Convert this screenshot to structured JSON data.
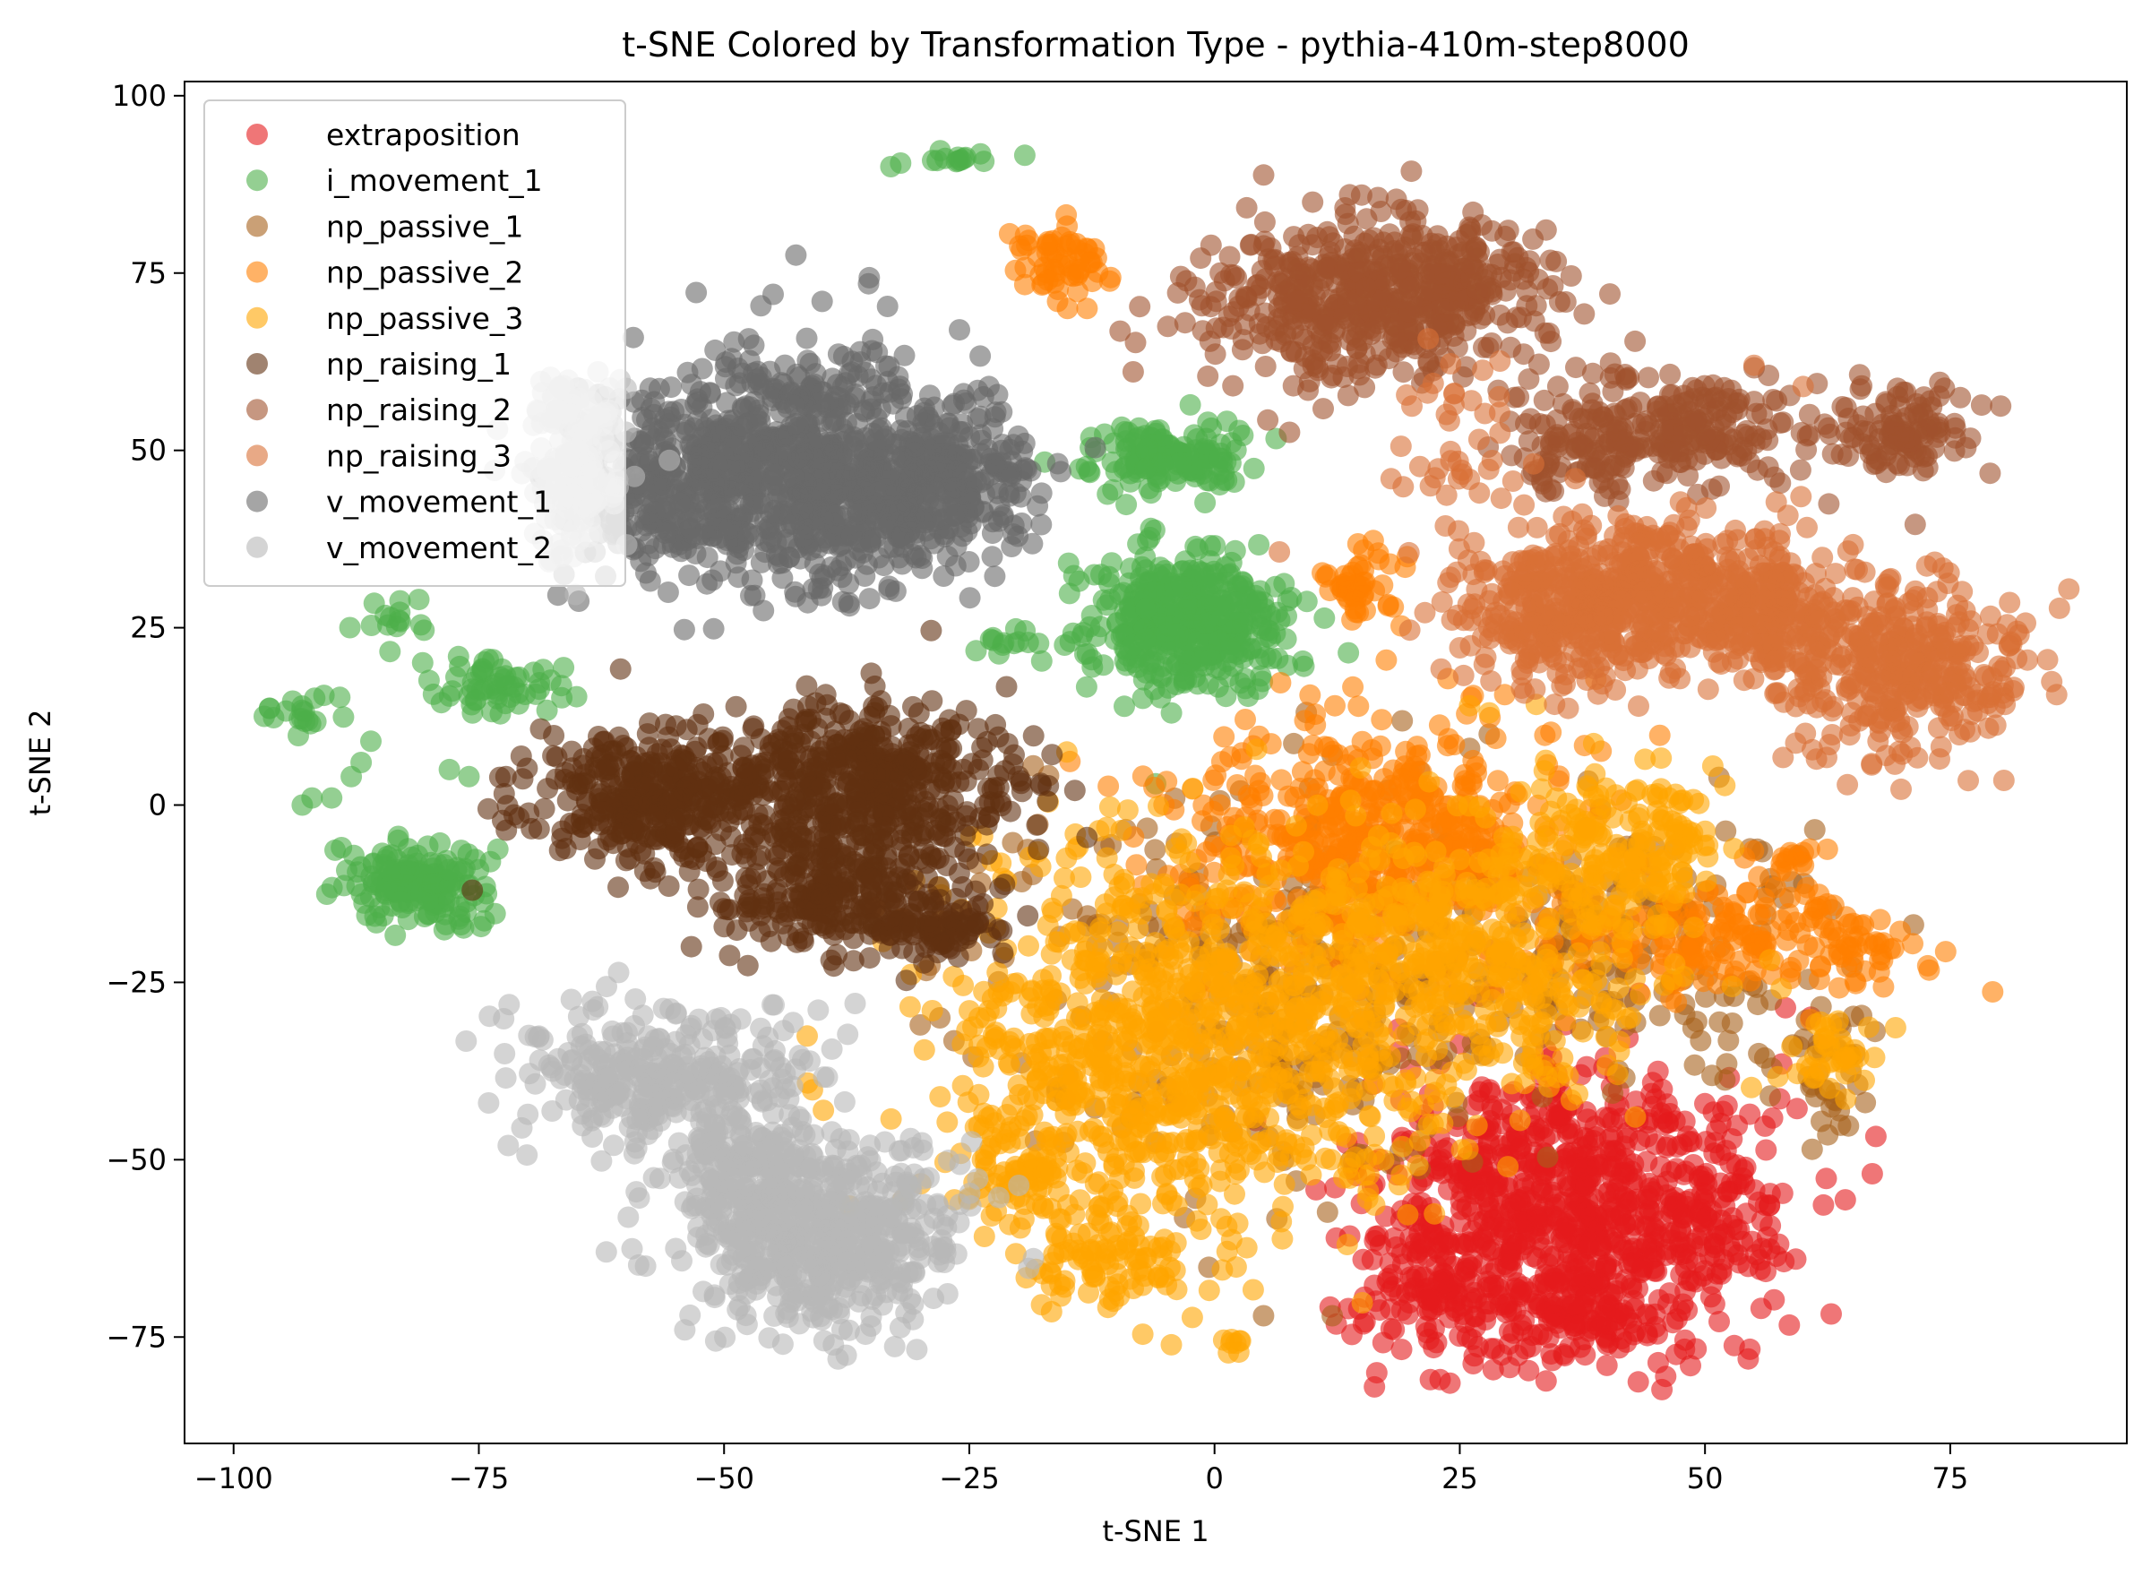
{
  "chart_data": {
    "type": "scatter",
    "title": "t-SNE Colored by Transformation Type - pythia-410m-step8000",
    "xlabel": "t-SNE 1",
    "ylabel": "t-SNE 2",
    "xlim": [
      -105,
      93
    ],
    "ylim": [
      -90,
      102
    ],
    "xticks": [
      -100,
      -75,
      -50,
      -25,
      0,
      25,
      50,
      75
    ],
    "yticks": [
      -75,
      -50,
      -25,
      0,
      25,
      50,
      75,
      100
    ],
    "xtick_labels": [
      "−100",
      "−75",
      "−50",
      "−25",
      "0",
      "25",
      "50",
      "75"
    ],
    "ytick_labels": [
      "−75",
      "−50",
      "−25",
      "0",
      "25",
      "50",
      "75",
      "100"
    ],
    "grid": false,
    "legend_position": "top-left",
    "marker_alpha": 0.6,
    "series": [
      {
        "name": "extraposition",
        "color": "#e41a1c",
        "clusters": [
          {
            "cx": 36,
            "cy": -55,
            "sx": 10,
            "sy": 9,
            "n": 700
          },
          {
            "cx": 35,
            "cy": -70,
            "sx": 8,
            "sy": 5,
            "n": 250
          },
          {
            "cx": 22,
            "cy": -65,
            "sx": 4,
            "sy": 5,
            "n": 60
          },
          {
            "cx": 50,
            "cy": -58,
            "sx": 4,
            "sy": 6,
            "n": 60
          }
        ],
        "points": [
          [
            23,
            -81
          ],
          [
            22,
            -81
          ],
          [
            24,
            -81.5
          ],
          [
            40,
            -79
          ]
        ]
      },
      {
        "name": "i_movement_1",
        "color": "#4daf4a",
        "clusters": [
          {
            "cx": -3,
            "cy": 26,
            "sx": 5,
            "sy": 5,
            "n": 450
          },
          {
            "cx": -5,
            "cy": 49,
            "sx": 4,
            "sy": 2.5,
            "n": 160
          },
          {
            "cx": -81,
            "cy": -11,
            "sx": 3.2,
            "sy": 2.6,
            "n": 180
          },
          {
            "cx": -73,
            "cy": 17,
            "sx": 3.2,
            "sy": 2,
            "n": 60
          },
          {
            "cx": -93,
            "cy": 13,
            "sx": 2,
            "sy": 1.5,
            "n": 20
          },
          {
            "cx": -84,
            "cy": 27,
            "sx": 2,
            "sy": 2,
            "n": 15
          },
          {
            "cx": -21,
            "cy": 23,
            "sx": 1.5,
            "sy": 1,
            "n": 12
          },
          {
            "cx": -26,
            "cy": 91,
            "sx": 2,
            "sy": 0.6,
            "n": 14
          }
        ],
        "points": [
          [
            -33,
            90
          ],
          [
            -32,
            90.5
          ],
          [
            -86,
            9
          ],
          [
            -87,
            6
          ],
          [
            -88,
            4
          ],
          [
            -90,
            1
          ],
          [
            -93,
            0
          ],
          [
            -92,
            1
          ],
          [
            -89,
            -6
          ],
          [
            -78,
            5
          ],
          [
            -76,
            4
          ],
          [
            -6,
            3
          ],
          [
            -20,
            23
          ]
        ]
      },
      {
        "name": "np_passive_1",
        "color": "#a6611a",
        "clusters": [
          {
            "cx": 9,
            "cy": -25,
            "sx": 15,
            "sy": 13,
            "n": 380
          },
          {
            "cx": 45,
            "cy": -20,
            "sx": 9,
            "sy": 9,
            "n": 150
          },
          {
            "cx": 62,
            "cy": -38,
            "sx": 3,
            "sy": 5,
            "n": 40
          }
        ],
        "points": [
          [
            5,
            -72
          ],
          [
            12,
            -72
          ],
          [
            -28,
            -30
          ],
          [
            -30,
            -31
          ],
          [
            26,
            8
          ],
          [
            28,
            10
          ]
        ]
      },
      {
        "name": "np_passive_2",
        "color": "#ff7f00",
        "clusters": [
          {
            "cx": 16,
            "cy": -5,
            "sx": 10,
            "sy": 8,
            "n": 550
          },
          {
            "cx": 52,
            "cy": -19,
            "sx": 8,
            "sy": 4,
            "n": 180
          },
          {
            "cx": -15,
            "cy": 77,
            "sx": 2.5,
            "sy": 2.5,
            "n": 60
          },
          {
            "cx": 15,
            "cy": 31,
            "sx": 2,
            "sy": 2.5,
            "n": 50
          },
          {
            "cx": 66,
            "cy": -20,
            "sx": 2,
            "sy": 3,
            "n": 30
          },
          {
            "cx": 59,
            "cy": -7,
            "sx": 2.5,
            "sy": 1,
            "n": 14
          }
        ],
        "points": [
          [
            -16,
            71
          ],
          [
            -15,
            70
          ],
          [
            -13,
            70
          ],
          [
            -17,
            74
          ]
        ]
      },
      {
        "name": "np_passive_3",
        "color": "#ffa500",
        "clusters": [
          {
            "cx": -4,
            "cy": -34,
            "sx": 12,
            "sy": 14,
            "n": 900
          },
          {
            "cx": 24,
            "cy": -22,
            "sx": 11,
            "sy": 10,
            "n": 500
          },
          {
            "cx": 42,
            "cy": -5,
            "sx": 5,
            "sy": 5,
            "n": 160
          },
          {
            "cx": 63,
            "cy": -35,
            "sx": 2.5,
            "sy": 3,
            "n": 40
          },
          {
            "cx": -20,
            "cy": -52,
            "sx": 3,
            "sy": 4,
            "n": 70
          },
          {
            "cx": -10,
            "cy": -65,
            "sx": 4,
            "sy": 3,
            "n": 80
          },
          {
            "cx": 2,
            "cy": -75,
            "sx": 1,
            "sy": 1,
            "n": 8
          }
        ],
        "points": [
          [
            -25,
            -29
          ],
          [
            -24,
            -30
          ],
          [
            -23,
            -29
          ],
          [
            26,
            14
          ],
          [
            28,
            13
          ]
        ]
      },
      {
        "name": "np_raising_1",
        "color": "#603010",
        "clusters": [
          {
            "cx": -36,
            "cy": 3,
            "sx": 8,
            "sy": 6,
            "n": 500
          },
          {
            "cx": -57,
            "cy": 1,
            "sx": 7,
            "sy": 5,
            "n": 350
          },
          {
            "cx": -40,
            "cy": -13,
            "sx": 7,
            "sy": 4,
            "n": 250
          },
          {
            "cx": -28,
            "cy": -18,
            "sx": 3,
            "sy": 2,
            "n": 60
          }
        ],
        "points": [
          [
            -62,
            5
          ],
          [
            -65,
            3
          ]
        ]
      },
      {
        "name": "np_raising_2",
        "color": "#a0522d",
        "clusters": [
          {
            "cx": 14,
            "cy": 71,
            "sx": 8,
            "sy": 6,
            "n": 420
          },
          {
            "cx": 24,
            "cy": 73,
            "sx": 6,
            "sy": 4,
            "n": 150
          },
          {
            "cx": 46,
            "cy": 53,
            "sx": 6,
            "sy": 4,
            "n": 220
          },
          {
            "cx": 69,
            "cy": 53,
            "sx": 4,
            "sy": 3,
            "n": 120
          },
          {
            "cx": 37,
            "cy": 50,
            "sx": 4,
            "sy": 3,
            "n": 60
          }
        ],
        "points": [
          [
            -3,
            68
          ],
          [
            -2,
            73
          ],
          [
            10,
            85
          ],
          [
            15,
            86
          ]
        ]
      },
      {
        "name": "np_raising_3",
        "color": "#d87036",
        "clusters": [
          {
            "cx": 45,
            "cy": 30,
            "sx": 9,
            "sy": 5,
            "n": 500
          },
          {
            "cx": 35,
            "cy": 26,
            "sx": 5,
            "sy": 5,
            "n": 180
          },
          {
            "cx": 70,
            "cy": 19,
            "sx": 6,
            "sy": 6,
            "n": 350
          },
          {
            "cx": 58,
            "cy": 25,
            "sx": 4,
            "sy": 5,
            "n": 120
          },
          {
            "cx": 25,
            "cy": 50,
            "sx": 4,
            "sy": 6,
            "n": 40
          }
        ],
        "points": [
          [
            22,
            45
          ],
          [
            27,
            44
          ],
          [
            18,
            46
          ],
          [
            55,
            62
          ],
          [
            60,
            59
          ],
          [
            33,
            35
          ]
        ]
      },
      {
        "name": "v_movement_1",
        "color": "#696969",
        "clusters": [
          {
            "cx": -43,
            "cy": 47,
            "sx": 9,
            "sy": 8,
            "n": 900
          },
          {
            "cx": -28,
            "cy": 46,
            "sx": 5,
            "sy": 5,
            "n": 250
          },
          {
            "cx": -58,
            "cy": 44,
            "sx": 4,
            "sy": 6,
            "n": 150
          }
        ],
        "points": [
          [
            -20,
            52
          ],
          [
            -21,
            47
          ],
          [
            -22,
            40
          ],
          [
            -23,
            59
          ],
          [
            -26,
            67
          ],
          [
            -40,
            71
          ],
          [
            -45,
            72
          ]
        ]
      },
      {
        "name": "v_movement_2",
        "color": "#b8b8b8",
        "clusters": [
          {
            "cx": -40,
            "cy": -60,
            "sx": 7,
            "sy": 7,
            "n": 550
          },
          {
            "cx": -56,
            "cy": -38,
            "sx": 7,
            "sy": 5,
            "n": 320
          },
          {
            "cx": -48,
            "cy": -52,
            "sx": 4,
            "sy": 4,
            "n": 140
          },
          {
            "cx": -65,
            "cy": 47,
            "sx": 3,
            "sy": 6,
            "n": 150
          },
          {
            "cx": -66,
            "cy": 55,
            "sx": 2,
            "sy": 3,
            "n": 40
          }
        ],
        "points": [
          [
            -72,
            -48
          ],
          [
            -74,
            -42
          ],
          [
            -62,
            -63
          ],
          [
            -58,
            -65
          ],
          [
            -44,
            -76
          ],
          [
            -54,
            -74
          ]
        ]
      }
    ]
  }
}
